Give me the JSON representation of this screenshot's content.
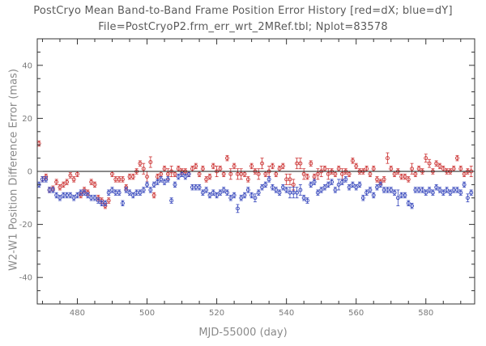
{
  "header": {
    "title": "PostCryo Mean Band-to-Band Frame Position Error History [red=dX; blue=dY]",
    "subtitle": "File=PostCryoP2.frm_err_wrt_2MRef.tbl; Nplot=83578"
  },
  "colors": {
    "dX": "#cc3333",
    "dY": "#3344bb",
    "axis": "#333333",
    "text": "#5a5a5a"
  },
  "chart_data": {
    "type": "scatter",
    "title": "PostCryo Mean Band-to-Band Frame Position Error History [red=dX; blue=dY]",
    "subtitle": "File=PostCryoP2.frm_err_wrt_2MRef.tbl; Nplot=83578",
    "xlabel": "MJD-55000 (day)",
    "ylabel": "W2-W1 Position Difference Error (mas)",
    "xlim": [
      468.5,
      594
    ],
    "ylim": [
      -50,
      50
    ],
    "xticks": [
      480,
      500,
      520,
      540,
      560,
      580
    ],
    "xtick_labels": [
      "480",
      "500",
      "520",
      "540",
      "560",
      "580"
    ],
    "yticks": [
      -40,
      -20,
      0,
      20,
      40
    ],
    "ytick_labels": [
      "-40",
      "-20",
      "0",
      "20",
      "40"
    ],
    "reference_line_y": 0,
    "grid": false,
    "series": [
      {
        "name": "dX",
        "color": "#cc3333",
        "points": [
          [
            469,
            10.5,
            1
          ],
          [
            470,
            -3,
            1
          ],
          [
            471,
            -2,
            1
          ],
          [
            472,
            -7,
            1
          ],
          [
            473,
            -6.5,
            1
          ],
          [
            474,
            -4,
            1
          ],
          [
            475,
            -6,
            1
          ],
          [
            476,
            -5,
            1
          ],
          [
            477,
            -4,
            1
          ],
          [
            478,
            -1.5,
            1
          ],
          [
            479,
            -3,
            1
          ],
          [
            480,
            -1,
            1
          ],
          [
            481,
            -9,
            1
          ],
          [
            482,
            -7,
            1
          ],
          [
            483,
            -8,
            1
          ],
          [
            484,
            -4,
            1
          ],
          [
            485,
            -5,
            1
          ],
          [
            486,
            -10,
            1
          ],
          [
            487,
            -11,
            1
          ],
          [
            488,
            -13,
            1
          ],
          [
            489,
            -11,
            1
          ],
          [
            490,
            -1,
            1
          ],
          [
            491,
            -3,
            1
          ],
          [
            492,
            -3,
            1
          ],
          [
            493,
            -3,
            1
          ],
          [
            494,
            -6,
            1
          ],
          [
            495,
            -2,
            1
          ],
          [
            496,
            -2,
            1
          ],
          [
            497,
            0,
            1
          ],
          [
            498,
            3,
            1
          ],
          [
            499,
            1,
            2
          ],
          [
            500,
            -2,
            2
          ],
          [
            501,
            3.5,
            2
          ],
          [
            502,
            -9,
            1
          ],
          [
            503,
            -2,
            1
          ],
          [
            504,
            -1,
            1
          ],
          [
            505,
            1,
            1
          ],
          [
            506,
            -1,
            2
          ],
          [
            507,
            0,
            2
          ],
          [
            508,
            -1,
            1
          ],
          [
            509,
            1,
            1
          ],
          [
            510,
            0,
            1
          ],
          [
            511,
            0,
            1
          ],
          [
            512,
            -1,
            1
          ],
          [
            513,
            1,
            1
          ],
          [
            514,
            2,
            1
          ],
          [
            515,
            -1,
            1
          ],
          [
            516,
            1,
            1
          ],
          [
            517,
            -3,
            1
          ],
          [
            518,
            -2,
            1
          ],
          [
            519,
            2,
            1
          ],
          [
            520,
            0,
            2
          ],
          [
            521,
            1,
            1
          ],
          [
            522,
            -1,
            1
          ],
          [
            523,
            5,
            1
          ],
          [
            524,
            -1,
            2
          ],
          [
            525,
            2,
            1
          ],
          [
            526,
            -1,
            2
          ],
          [
            527,
            -1,
            2
          ],
          [
            528,
            -1,
            1
          ],
          [
            529,
            -3,
            1
          ],
          [
            530,
            2,
            1
          ],
          [
            531,
            0,
            1
          ],
          [
            532,
            -1,
            2
          ],
          [
            533,
            3,
            2
          ],
          [
            534,
            -1,
            1
          ],
          [
            535,
            0,
            2
          ],
          [
            536,
            2,
            1
          ],
          [
            537,
            -1,
            1
          ],
          [
            538,
            1,
            1
          ],
          [
            539,
            2,
            1
          ],
          [
            540,
            -3,
            2
          ],
          [
            541,
            -3,
            2
          ],
          [
            542,
            -5,
            2
          ],
          [
            543,
            3,
            2
          ],
          [
            544,
            3,
            2
          ],
          [
            545,
            -1,
            2
          ],
          [
            546,
            -2,
            1
          ],
          [
            547,
            3,
            1
          ],
          [
            548,
            -2,
            1
          ],
          [
            549,
            -1,
            2
          ],
          [
            550,
            0,
            2
          ],
          [
            551,
            1,
            1
          ],
          [
            552,
            -1,
            2
          ],
          [
            553,
            0,
            1
          ],
          [
            554,
            -1,
            1
          ],
          [
            555,
            1,
            1
          ],
          [
            556,
            -1,
            2
          ],
          [
            557,
            0,
            1
          ],
          [
            558,
            -1,
            1
          ],
          [
            559,
            4,
            1
          ],
          [
            560,
            2,
            1
          ],
          [
            561,
            0,
            1
          ],
          [
            562,
            0,
            1
          ],
          [
            563,
            1,
            1
          ],
          [
            564,
            -1,
            1
          ],
          [
            565,
            1,
            1
          ],
          [
            566,
            -3,
            1
          ],
          [
            567,
            -4,
            1
          ],
          [
            568,
            -3,
            1
          ],
          [
            569,
            5,
            2
          ],
          [
            570,
            1,
            1
          ],
          [
            571,
            -1,
            1
          ],
          [
            572,
            0,
            1
          ],
          [
            573,
            -2,
            1
          ],
          [
            574,
            -2,
            1
          ],
          [
            575,
            -3,
            1
          ],
          [
            576,
            1,
            2
          ],
          [
            577,
            -1,
            1
          ],
          [
            578,
            1,
            1
          ],
          [
            579,
            0,
            1
          ],
          [
            580,
            5,
            1.5
          ],
          [
            581,
            3,
            1.5
          ],
          [
            582,
            0,
            1
          ],
          [
            583,
            3,
            1
          ],
          [
            584,
            2,
            1
          ],
          [
            585,
            1,
            1
          ],
          [
            586,
            0,
            1
          ],
          [
            587,
            0,
            1
          ],
          [
            588,
            1,
            1
          ],
          [
            589,
            5,
            1
          ],
          [
            590,
            1,
            1
          ],
          [
            591,
            -1,
            1
          ],
          [
            592,
            0,
            1
          ],
          [
            593,
            0,
            2
          ]
        ]
      },
      {
        "name": "dY",
        "color": "#3344bb",
        "points": [
          [
            469,
            -5,
            1
          ],
          [
            470,
            -3,
            1
          ],
          [
            471,
            -3,
            1
          ],
          [
            472,
            -7,
            1
          ],
          [
            473,
            -7,
            1
          ],
          [
            474,
            -9,
            1
          ],
          [
            475,
            -10,
            1
          ],
          [
            476,
            -9,
            1
          ],
          [
            477,
            -9,
            1
          ],
          [
            478,
            -9,
            1
          ],
          [
            479,
            -10,
            1
          ],
          [
            480,
            -9,
            1
          ],
          [
            481,
            -8,
            1
          ],
          [
            482,
            -8,
            1
          ],
          [
            483,
            -9,
            1
          ],
          [
            484,
            -10,
            1
          ],
          [
            485,
            -10,
            1
          ],
          [
            486,
            -11,
            1
          ],
          [
            487,
            -12,
            1
          ],
          [
            488,
            -12,
            1
          ],
          [
            489,
            -8,
            1
          ],
          [
            490,
            -7,
            1
          ],
          [
            491,
            -8,
            1
          ],
          [
            492,
            -8,
            1
          ],
          [
            493,
            -12,
            1
          ],
          [
            494,
            -7,
            1
          ],
          [
            495,
            -8,
            1
          ],
          [
            496,
            -9,
            1
          ],
          [
            497,
            -8,
            1
          ],
          [
            498,
            -8,
            1
          ],
          [
            499,
            -7,
            1
          ],
          [
            500,
            -5,
            1
          ],
          [
            501,
            -7,
            1
          ],
          [
            502,
            -5,
            1
          ],
          [
            503,
            -4,
            1
          ],
          [
            504,
            -3,
            1
          ],
          [
            505,
            -4,
            1
          ],
          [
            506,
            -3,
            1
          ],
          [
            507,
            -11,
            1
          ],
          [
            508,
            -5,
            1
          ],
          [
            509,
            -2,
            1
          ],
          [
            510,
            -1,
            1
          ],
          [
            511,
            -2,
            1
          ],
          [
            512,
            -1,
            1
          ],
          [
            513,
            -6,
            1
          ],
          [
            514,
            -6,
            1
          ],
          [
            515,
            -6,
            1
          ],
          [
            516,
            -8,
            1
          ],
          [
            517,
            -7,
            1
          ],
          [
            518,
            -9,
            1
          ],
          [
            519,
            -8,
            1
          ],
          [
            520,
            -9,
            1
          ],
          [
            521,
            -8,
            1
          ],
          [
            522,
            -7,
            1
          ],
          [
            523,
            -8,
            1
          ],
          [
            524,
            -10,
            1
          ],
          [
            525,
            -9,
            1
          ],
          [
            526,
            -14,
            1.5
          ],
          [
            527,
            -10,
            1
          ],
          [
            528,
            -9,
            1
          ],
          [
            529,
            -7,
            1
          ],
          [
            530,
            -9,
            1
          ],
          [
            531,
            -10,
            1.5
          ],
          [
            532,
            -8,
            1
          ],
          [
            533,
            -6,
            1
          ],
          [
            534,
            -5,
            1
          ],
          [
            535,
            -3,
            1
          ],
          [
            536,
            -6,
            1
          ],
          [
            537,
            -7,
            1
          ],
          [
            538,
            -8,
            1
          ],
          [
            539,
            -6,
            1
          ],
          [
            540,
            -7,
            1
          ],
          [
            541,
            -8,
            2
          ],
          [
            542,
            -8,
            2
          ],
          [
            543,
            -8,
            2
          ],
          [
            544,
            -7,
            2
          ],
          [
            545,
            -10,
            1
          ],
          [
            546,
            -11,
            1
          ],
          [
            547,
            -5,
            1
          ],
          [
            548,
            -4,
            1
          ],
          [
            549,
            -8,
            1
          ],
          [
            550,
            -7,
            1
          ],
          [
            551,
            -6,
            1
          ],
          [
            552,
            -5,
            1
          ],
          [
            553,
            -4,
            1
          ],
          [
            554,
            -7,
            1
          ],
          [
            555,
            -5,
            2
          ],
          [
            556,
            -4,
            1
          ],
          [
            557,
            -3,
            1
          ],
          [
            558,
            -6,
            1
          ],
          [
            559,
            -5,
            1
          ],
          [
            560,
            -6,
            1
          ],
          [
            561,
            -5,
            1
          ],
          [
            562,
            -10,
            1
          ],
          [
            563,
            -8,
            1
          ],
          [
            564,
            -7,
            1
          ],
          [
            565,
            -9,
            1
          ],
          [
            566,
            -6,
            1
          ],
          [
            567,
            -5,
            1
          ],
          [
            568,
            -7,
            1
          ],
          [
            569,
            -7,
            1
          ],
          [
            570,
            -7,
            1
          ],
          [
            571,
            -8,
            1
          ],
          [
            572,
            -10,
            3
          ],
          [
            573,
            -9,
            1
          ],
          [
            574,
            -9,
            1
          ],
          [
            575,
            -12,
            1
          ],
          [
            576,
            -13,
            1
          ],
          [
            577,
            -7,
            1
          ],
          [
            578,
            -7,
            1
          ],
          [
            579,
            -7,
            1
          ],
          [
            580,
            -8,
            1
          ],
          [
            581,
            -7,
            1
          ],
          [
            582,
            -8,
            1
          ],
          [
            583,
            -6,
            1
          ],
          [
            584,
            -7,
            1
          ],
          [
            585,
            -8,
            1
          ],
          [
            586,
            -7,
            1
          ],
          [
            587,
            -8,
            1
          ],
          [
            588,
            -7,
            1
          ],
          [
            589,
            -7,
            1
          ],
          [
            590,
            -8,
            1
          ],
          [
            591,
            -5,
            1
          ],
          [
            592,
            -10,
            1.5
          ],
          [
            593,
            -8,
            1
          ]
        ]
      }
    ]
  }
}
